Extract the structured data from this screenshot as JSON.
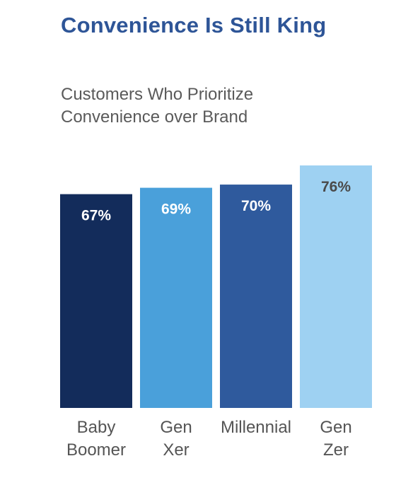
{
  "title": "Convenience Is Still King",
  "subtitle": [
    "Customers Who Prioritize",
    "Convenience over Brand"
  ],
  "chart_data": {
    "type": "bar",
    "categories": [
      [
        "Baby",
        "Boomer"
      ],
      [
        "Gen",
        "Xer"
      ],
      [
        "Millennial"
      ],
      [
        "Gen",
        "Zer"
      ]
    ],
    "values": [
      67,
      69,
      70,
      76
    ],
    "labels": [
      "67%",
      "69%",
      "70%",
      "76%"
    ],
    "colors": [
      "#132c5b",
      "#4aa0da",
      "#2f5a9d",
      "#9ed1f2"
    ],
    "label_colors": [
      "#ffffff",
      "#ffffff",
      "#ffffff",
      "#4a4a4a"
    ],
    "title": "Convenience Is Still King",
    "xlabel": "",
    "ylabel": "",
    "ylim": [
      0,
      76
    ],
    "grid": false,
    "legend": "none"
  }
}
